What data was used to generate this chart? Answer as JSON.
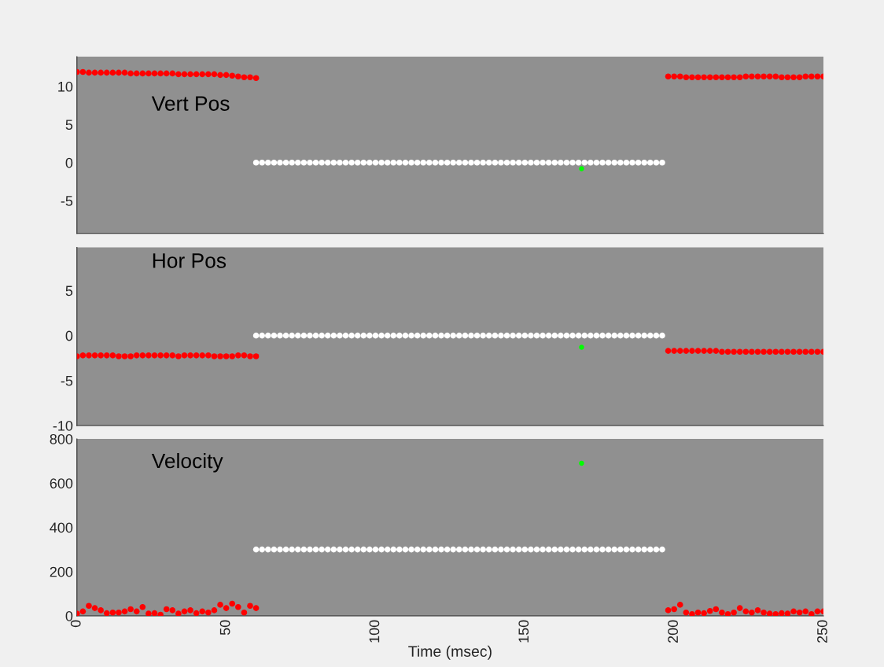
{
  "chart_data": [
    {
      "type": "scatter",
      "title": "Vert Pos",
      "marker": "circle",
      "xlim": [
        0,
        250
      ],
      "xticks": [
        0,
        50,
        100,
        150,
        200,
        250
      ],
      "ylim": [
        -9.3,
        13.9
      ],
      "yticks": [
        -5,
        0,
        5,
        10
      ],
      "tick_labels": "y",
      "series": [
        {
          "color": "#ff0000",
          "x": [
            0,
            2,
            4,
            6,
            8,
            10,
            12,
            14,
            16,
            18,
            20,
            22,
            24,
            26,
            28,
            30,
            32,
            34,
            36,
            38,
            40,
            42,
            44,
            46,
            48,
            50,
            52,
            54,
            56,
            58,
            60,
            198,
            200,
            202,
            204,
            206,
            208,
            210,
            212,
            214,
            216,
            218,
            220,
            222,
            224,
            226,
            228,
            230,
            232,
            234,
            236,
            238,
            240,
            242,
            244,
            246,
            248,
            250
          ],
          "values": [
            11.9,
            11.9,
            11.8,
            11.8,
            11.8,
            11.8,
            11.8,
            11.8,
            11.8,
            11.7,
            11.7,
            11.7,
            11.7,
            11.7,
            11.7,
            11.7,
            11.7,
            11.6,
            11.6,
            11.6,
            11.6,
            11.6,
            11.6,
            11.6,
            11.5,
            11.5,
            11.4,
            11.3,
            11.2,
            11.2,
            11.1,
            11.3,
            11.3,
            11.3,
            11.2,
            11.2,
            11.2,
            11.2,
            11.2,
            11.2,
            11.2,
            11.2,
            11.2,
            11.2,
            11.3,
            11.3,
            11.3,
            11.3,
            11.3,
            11.3,
            11.2,
            11.2,
            11.2,
            11.2,
            11.3,
            11.3,
            11.3,
            11.3
          ]
        },
        {
          "color": "#ffffff",
          "x": [
            60,
            62,
            64,
            66,
            68,
            70,
            72,
            74,
            76,
            78,
            80,
            82,
            84,
            86,
            88,
            90,
            92,
            94,
            96,
            98,
            100,
            102,
            104,
            106,
            108,
            110,
            112,
            114,
            116,
            118,
            120,
            122,
            124,
            126,
            128,
            130,
            132,
            134,
            136,
            138,
            140,
            142,
            144,
            146,
            148,
            150,
            152,
            154,
            156,
            158,
            160,
            162,
            164,
            166,
            168,
            170,
            172,
            174,
            176,
            178,
            180,
            182,
            184,
            186,
            188,
            190,
            192,
            194,
            196
          ],
          "values": [
            0,
            0,
            0,
            0,
            0,
            0,
            0,
            0,
            0,
            0,
            0,
            0,
            0,
            0,
            0,
            0,
            0,
            0,
            0,
            0,
            0,
            0,
            0,
            0,
            0,
            0,
            0,
            0,
            0,
            0,
            0,
            0,
            0,
            0,
            0,
            0,
            0,
            0,
            0,
            0,
            0,
            0,
            0,
            0,
            0,
            0,
            0,
            0,
            0,
            0,
            0,
            0,
            0,
            0,
            0,
            0,
            0,
            0,
            0,
            0,
            0,
            0,
            0,
            0,
            0,
            0,
            0,
            0,
            0
          ]
        },
        {
          "color": "#00ff00",
          "x": [
            169
          ],
          "values": [
            -0.8
          ]
        }
      ]
    },
    {
      "type": "scatter",
      "title": "Hor Pos",
      "marker": "circle",
      "xlim": [
        0,
        250
      ],
      "xticks": [
        0,
        50,
        100,
        150,
        200,
        250
      ],
      "ylim": [
        -10,
        9.8
      ],
      "yticks": [
        -10,
        -5,
        0,
        5
      ],
      "tick_labels": "y",
      "series": [
        {
          "color": "#ff0000",
          "x": [
            0,
            2,
            4,
            6,
            8,
            10,
            12,
            14,
            16,
            18,
            20,
            22,
            24,
            26,
            28,
            30,
            32,
            34,
            36,
            38,
            40,
            42,
            44,
            46,
            48,
            50,
            52,
            54,
            56,
            58,
            60,
            198,
            200,
            202,
            204,
            206,
            208,
            210,
            212,
            214,
            216,
            218,
            220,
            222,
            224,
            226,
            228,
            230,
            232,
            234,
            236,
            238,
            240,
            242,
            244,
            246,
            248,
            250
          ],
          "values": [
            -2.3,
            -2.2,
            -2.2,
            -2.2,
            -2.2,
            -2.2,
            -2.2,
            -2.3,
            -2.3,
            -2.3,
            -2.2,
            -2.2,
            -2.2,
            -2.2,
            -2.2,
            -2.2,
            -2.2,
            -2.3,
            -2.2,
            -2.2,
            -2.2,
            -2.2,
            -2.2,
            -2.3,
            -2.3,
            -2.3,
            -2.3,
            -2.2,
            -2.2,
            -2.3,
            -2.3,
            -1.7,
            -1.7,
            -1.7,
            -1.7,
            -1.7,
            -1.7,
            -1.7,
            -1.7,
            -1.7,
            -1.8,
            -1.8,
            -1.8,
            -1.8,
            -1.8,
            -1.8,
            -1.8,
            -1.8,
            -1.8,
            -1.8,
            -1.8,
            -1.8,
            -1.8,
            -1.8,
            -1.8,
            -1.8,
            -1.8,
            -1.8
          ]
        },
        {
          "color": "#ffffff",
          "x": [
            60,
            62,
            64,
            66,
            68,
            70,
            72,
            74,
            76,
            78,
            80,
            82,
            84,
            86,
            88,
            90,
            92,
            94,
            96,
            98,
            100,
            102,
            104,
            106,
            108,
            110,
            112,
            114,
            116,
            118,
            120,
            122,
            124,
            126,
            128,
            130,
            132,
            134,
            136,
            138,
            140,
            142,
            144,
            146,
            148,
            150,
            152,
            154,
            156,
            158,
            160,
            162,
            164,
            166,
            168,
            170,
            172,
            174,
            176,
            178,
            180,
            182,
            184,
            186,
            188,
            190,
            192,
            194,
            196
          ],
          "values": [
            0,
            0,
            0,
            0,
            0,
            0,
            0,
            0,
            0,
            0,
            0,
            0,
            0,
            0,
            0,
            0,
            0,
            0,
            0,
            0,
            0,
            0,
            0,
            0,
            0,
            0,
            0,
            0,
            0,
            0,
            0,
            0,
            0,
            0,
            0,
            0,
            0,
            0,
            0,
            0,
            0,
            0,
            0,
            0,
            0,
            0,
            0,
            0,
            0,
            0,
            0,
            0,
            0,
            0,
            0,
            0,
            0,
            0,
            0,
            0,
            0,
            0,
            0,
            0,
            0,
            0,
            0,
            0,
            0
          ]
        },
        {
          "color": "#00ff00",
          "x": [
            169
          ],
          "values": [
            -1.3
          ]
        }
      ]
    },
    {
      "type": "scatter",
      "title": "Velocity",
      "xlabel": "Time (msec)",
      "marker": "circle",
      "xlim": [
        0,
        250
      ],
      "xticks": [
        0,
        50,
        100,
        150,
        200,
        250
      ],
      "ylim": [
        0,
        800
      ],
      "yticks": [
        0,
        200,
        400,
        600,
        800
      ],
      "series": [
        {
          "color": "#ff0000",
          "x": [
            0,
            2,
            4,
            6,
            8,
            10,
            12,
            14,
            16,
            18,
            20,
            22,
            24,
            26,
            28,
            30,
            32,
            34,
            36,
            38,
            40,
            42,
            44,
            46,
            48,
            50,
            52,
            54,
            56,
            58,
            60,
            198,
            200,
            202,
            204,
            206,
            208,
            210,
            212,
            214,
            216,
            218,
            220,
            222,
            224,
            226,
            228,
            230,
            232,
            234,
            236,
            238,
            240,
            242,
            244,
            246,
            248,
            250
          ],
          "values": [
            10,
            20,
            45,
            35,
            25,
            12,
            15,
            15,
            20,
            30,
            20,
            40,
            10,
            12,
            5,
            30,
            25,
            10,
            20,
            25,
            12,
            20,
            15,
            25,
            50,
            35,
            55,
            40,
            15,
            45,
            35,
            25,
            30,
            50,
            15,
            8,
            15,
            12,
            22,
            30,
            15,
            8,
            15,
            35,
            20,
            15,
            25,
            15,
            10,
            8,
            12,
            10,
            20,
            15,
            20,
            8,
            20,
            20
          ]
        },
        {
          "color": "#ffffff",
          "x": [
            60,
            62,
            64,
            66,
            68,
            70,
            72,
            74,
            76,
            78,
            80,
            82,
            84,
            86,
            88,
            90,
            92,
            94,
            96,
            98,
            100,
            102,
            104,
            106,
            108,
            110,
            112,
            114,
            116,
            118,
            120,
            122,
            124,
            126,
            128,
            130,
            132,
            134,
            136,
            138,
            140,
            142,
            144,
            146,
            148,
            150,
            152,
            154,
            156,
            158,
            160,
            162,
            164,
            166,
            168,
            170,
            172,
            174,
            176,
            178,
            180,
            182,
            184,
            186,
            188,
            190,
            192,
            194,
            196
          ],
          "values": [
            300,
            300,
            300,
            300,
            300,
            300,
            300,
            300,
            300,
            300,
            300,
            300,
            300,
            300,
            300,
            300,
            300,
            300,
            300,
            300,
            300,
            300,
            300,
            300,
            300,
            300,
            300,
            300,
            300,
            300,
            300,
            300,
            300,
            300,
            300,
            300,
            300,
            300,
            300,
            300,
            300,
            300,
            300,
            300,
            300,
            300,
            300,
            300,
            300,
            300,
            300,
            300,
            300,
            300,
            300,
            300,
            300,
            300,
            300,
            300,
            300,
            300,
            300,
            300,
            300,
            300,
            300,
            300,
            300
          ]
        },
        {
          "color": "#00ff00",
          "x": [
            169
          ],
          "values": [
            690
          ]
        }
      ]
    }
  ]
}
